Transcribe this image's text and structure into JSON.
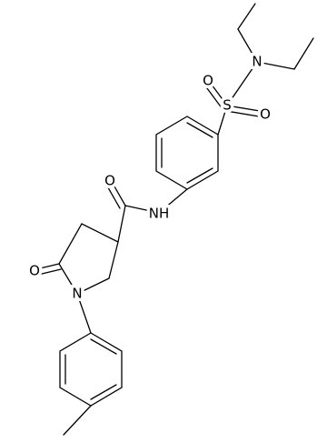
{
  "atoms": [
    {
      "label": "N"
    },
    {
      "label": "S"
    },
    {
      "label": "O"
    },
    {
      "label": "O"
    },
    {
      "label": "NH"
    },
    {
      "label": "O"
    },
    {
      "label": "O"
    },
    {
      "label": "N"
    }
  ]
}
